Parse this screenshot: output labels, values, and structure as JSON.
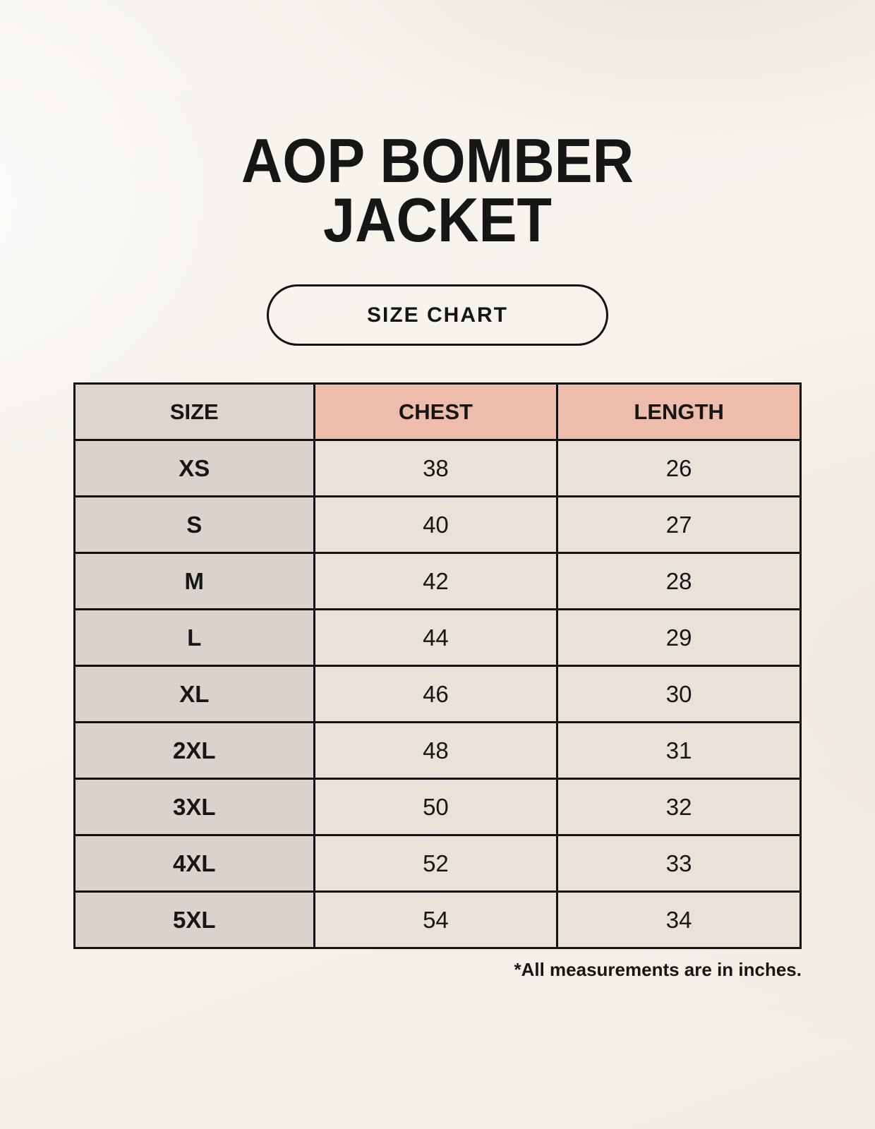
{
  "header": {
    "title_line1": "AOP BOMBER",
    "title_line2": "JACKET",
    "badge_label": "SIZE CHART"
  },
  "table": {
    "columns": [
      "SIZE",
      "CHEST",
      "LENGTH"
    ],
    "rows": [
      {
        "size": "XS",
        "chest": "38",
        "length": "26"
      },
      {
        "size": "S",
        "chest": "40",
        "length": "27"
      },
      {
        "size": "M",
        "chest": "42",
        "length": "28"
      },
      {
        "size": "L",
        "chest": "44",
        "length": "29"
      },
      {
        "size": "XL",
        "chest": "46",
        "length": "30"
      },
      {
        "size": "2XL",
        "chest": "48",
        "length": "31"
      },
      {
        "size": "3XL",
        "chest": "50",
        "length": "32"
      },
      {
        "size": "4XL",
        "chest": "52",
        "length": "33"
      },
      {
        "size": "5XL",
        "chest": "54",
        "length": "34"
      }
    ]
  },
  "footnote": "*All measurements are in inches.",
  "colors": {
    "page_bg": "#f5f1ea",
    "size_header_bg": "#dcd5d0",
    "measure_header_bg": "#eebcab",
    "size_col_bg": "#d9d2cd",
    "data_cell_bg": "#e9e2d8",
    "border": "#121212",
    "text": "#161616"
  },
  "chart_data": {
    "type": "table",
    "title": "AOP BOMBER JACKET",
    "columns": [
      "SIZE",
      "CHEST",
      "LENGTH"
    ],
    "rows": [
      [
        "XS",
        38,
        26
      ],
      [
        "S",
        40,
        27
      ],
      [
        "M",
        42,
        28
      ],
      [
        "L",
        44,
        29
      ],
      [
        "XL",
        46,
        30
      ],
      [
        "2XL",
        48,
        31
      ],
      [
        "3XL",
        50,
        32
      ],
      [
        "4XL",
        52,
        33
      ],
      [
        "5XL",
        54,
        34
      ]
    ]
  }
}
